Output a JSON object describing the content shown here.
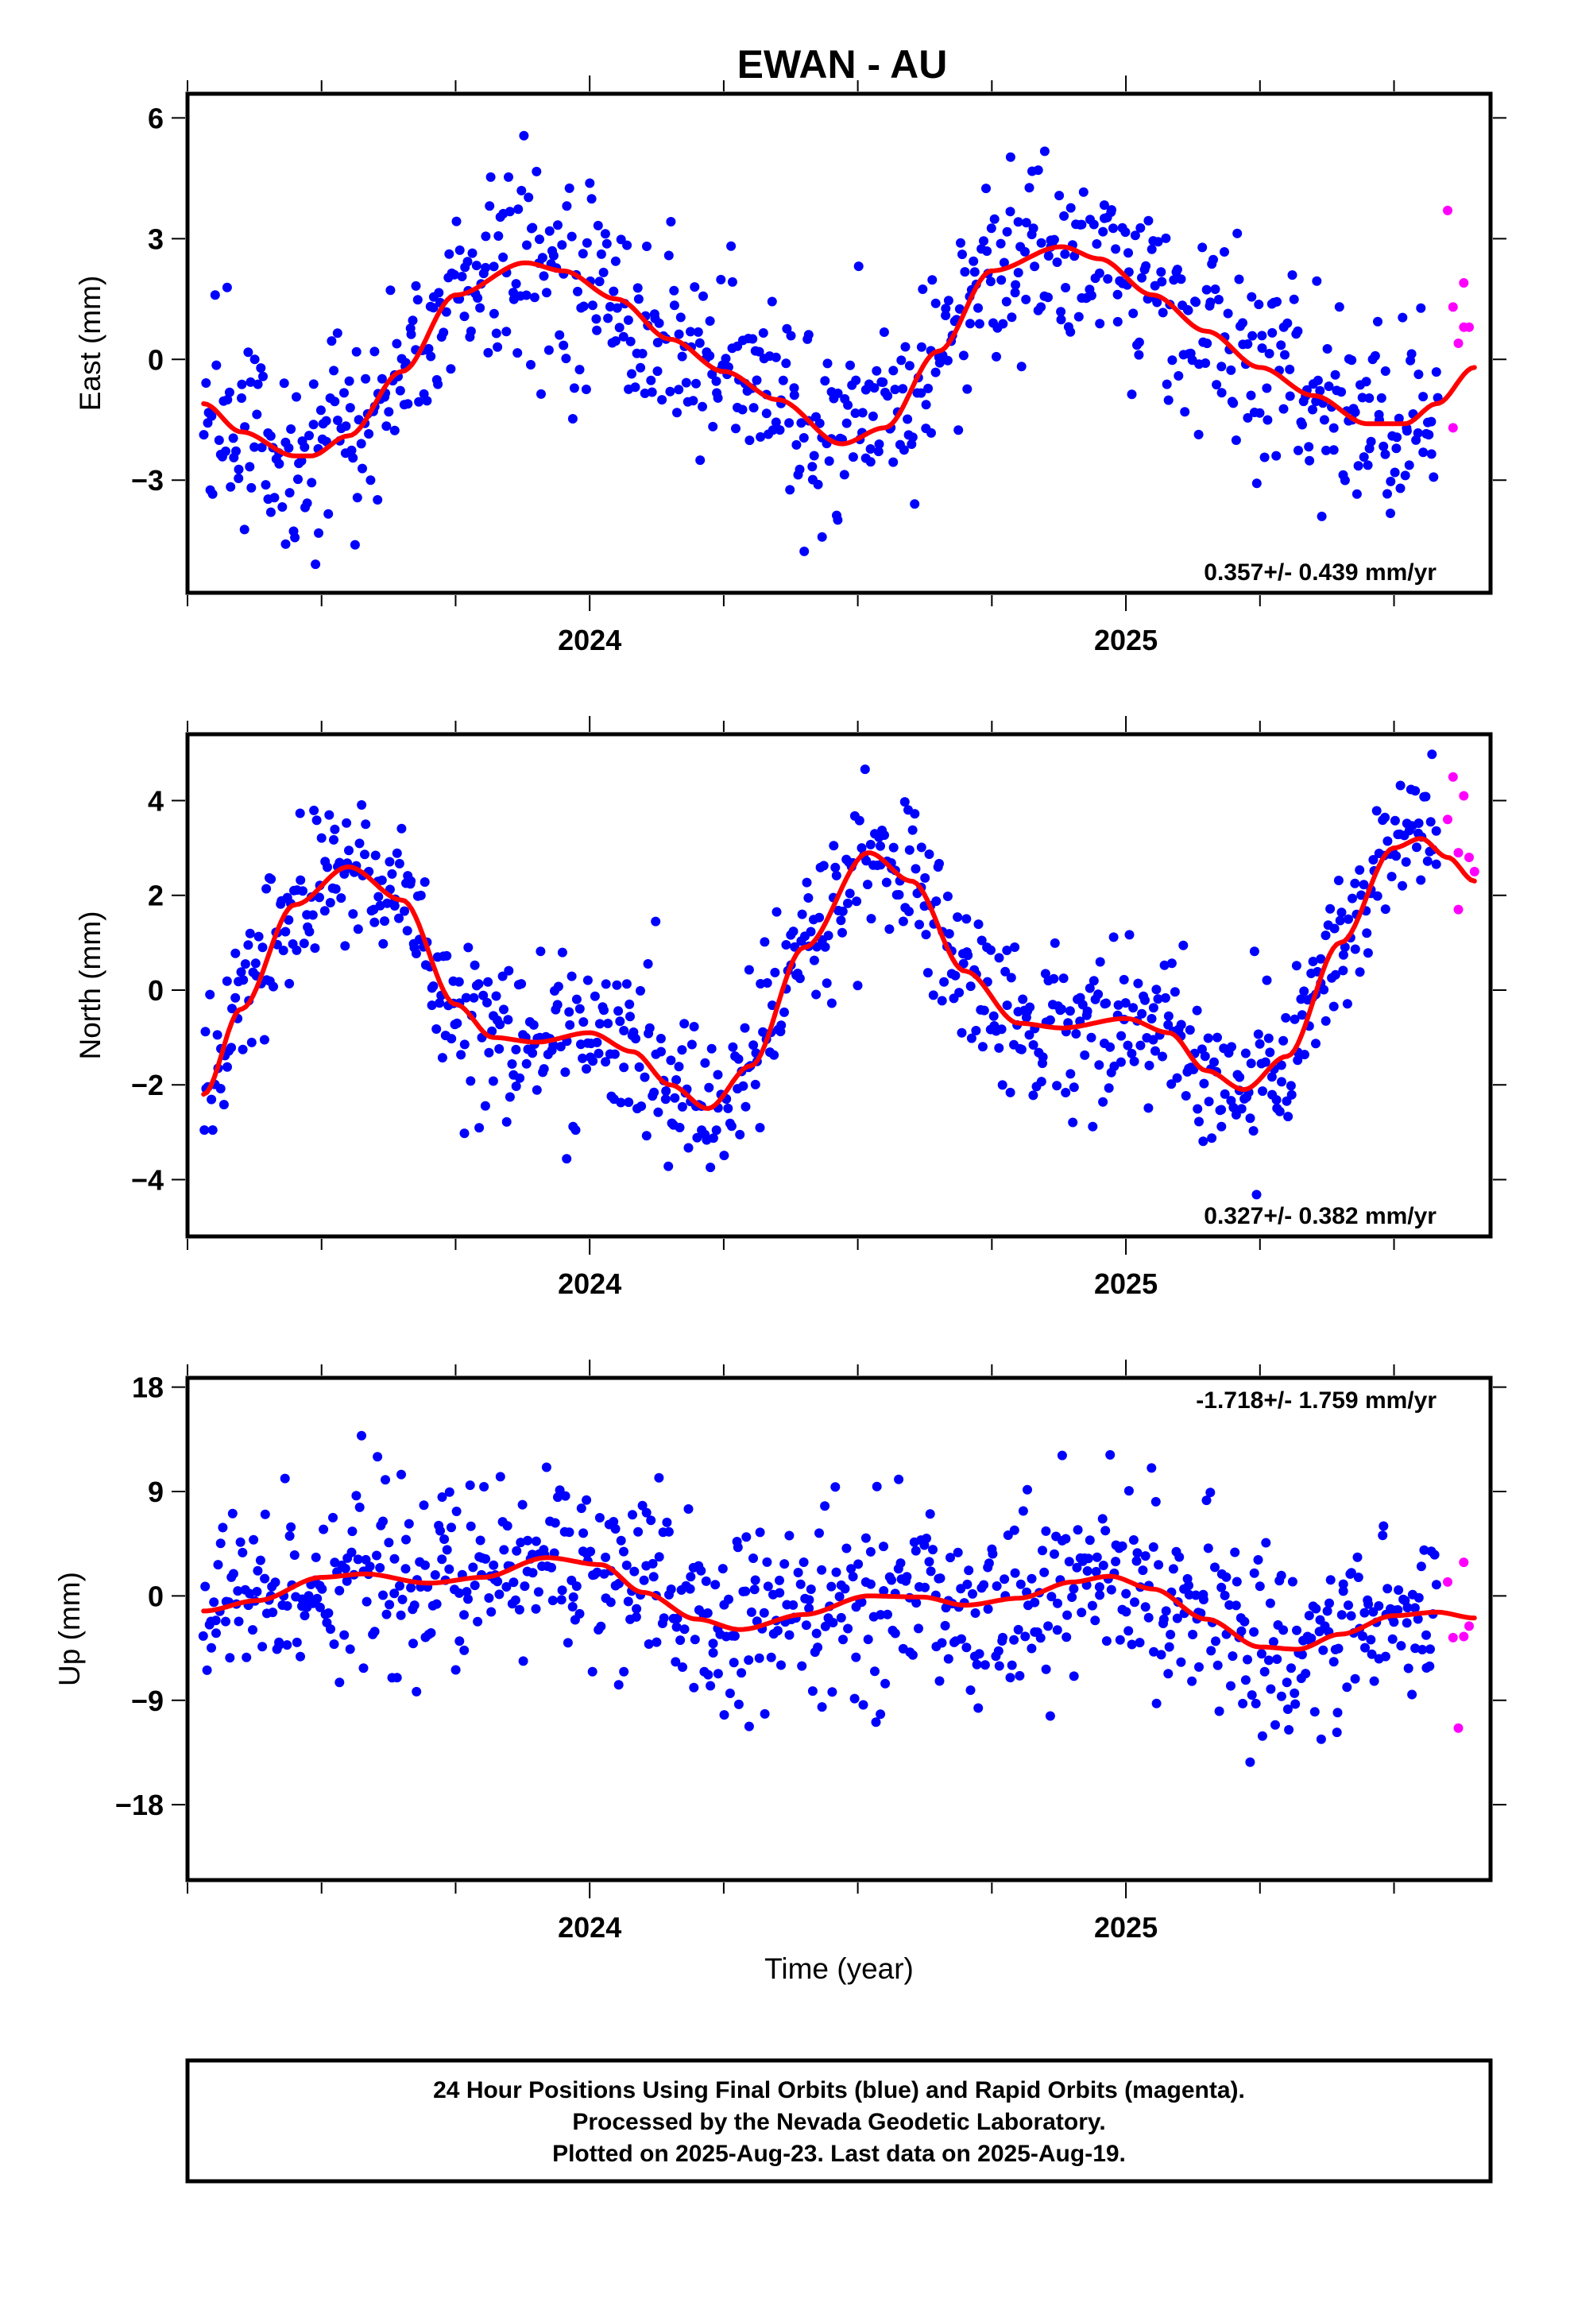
{
  "figure": {
    "title": "EWAN - AU",
    "xlabel": "Time (year)",
    "caption": [
      "24 Hour Positions Using Final Orbits (blue) and Rapid Orbits (magenta).",
      "Processed by the Nevada Geodetic Laboratory.",
      "Plotted on 2025-Aug-23. Last data on 2025-Aug-19."
    ],
    "colors": {
      "final": "#0000ff",
      "rapid": "#ff00ff",
      "fit": "#ff0000",
      "frame": "#000000"
    }
  },
  "chart_data": [
    {
      "type": "scatter",
      "ylabel": "East (mm)",
      "rate": "0.357+/- 0.439 mm/yr",
      "xlim": [
        2023.25,
        2025.68
      ],
      "ylim": [
        -5.8,
        6.6
      ],
      "yticks": [
        {
          "value": 6,
          "label": "6"
        },
        {
          "value": 3,
          "label": "3"
        },
        {
          "value": 0,
          "label": "0"
        },
        {
          "value": -3,
          "label": "−3"
        }
      ],
      "xticks": [
        {
          "value": 2024,
          "label": "2024"
        },
        {
          "value": 2025,
          "label": "2025"
        }
      ],
      "series": [
        {
          "name": "Final Orbits",
          "color": "#0000ff",
          "noise": 1.2
        },
        {
          "name": "Rapid Orbits",
          "color": "#ff00ff",
          "x": [
            2025.6,
            2025.61,
            2025.61,
            2025.62,
            2025.63,
            2025.63,
            2025.64
          ],
          "y": [
            3.7,
            -1.7,
            1.3,
            0.4,
            1.9,
            0.8,
            0.8
          ]
        }
      ],
      "fit": {
        "name": "fit",
        "color": "#ff0000",
        "x": [
          2023.28,
          2023.35,
          2023.45,
          2023.48,
          2023.55,
          2023.65,
          2023.75,
          2023.88,
          2023.95,
          2024.05,
          2024.15,
          2024.25,
          2024.35,
          2024.47,
          2024.55,
          2024.65,
          2024.75,
          2024.88,
          2024.95,
          2025.05,
          2025.15,
          2025.25,
          2025.35,
          2025.45,
          2025.52,
          2025.58,
          2025.65
        ],
        "y": [
          -1.1,
          -1.8,
          -2.4,
          -2.4,
          -1.9,
          -0.3,
          1.6,
          2.4,
          2.2,
          1.5,
          0.5,
          -0.3,
          -1.0,
          -2.1,
          -1.7,
          0.2,
          2.2,
          2.8,
          2.5,
          1.6,
          0.7,
          -0.2,
          -0.9,
          -1.6,
          -1.6,
          -1.1,
          -0.2
        ]
      }
    },
    {
      "type": "scatter",
      "ylabel": "North (mm)",
      "rate": "0.327+/- 0.382 mm/yr",
      "xlim": [
        2023.25,
        2025.68
      ],
      "ylim": [
        -5.2,
        5.4
      ],
      "yticks": [
        {
          "value": 4,
          "label": "4"
        },
        {
          "value": 2,
          "label": "2"
        },
        {
          "value": 0,
          "label": "0"
        },
        {
          "value": -2,
          "label": "−2"
        },
        {
          "value": -4,
          "label": "−4"
        }
      ],
      "xticks": [
        {
          "value": 2024,
          "label": "2024"
        },
        {
          "value": 2025,
          "label": "2025"
        }
      ],
      "series": [
        {
          "name": "Final Orbits",
          "color": "#0000ff",
          "noise": 0.85
        },
        {
          "name": "Rapid Orbits",
          "color": "#ff00ff",
          "x": [
            2025.6,
            2025.61,
            2025.62,
            2025.62,
            2025.63,
            2025.64,
            2025.65
          ],
          "y": [
            3.6,
            4.5,
            2.9,
            1.7,
            4.1,
            2.8,
            2.5
          ]
        }
      ],
      "fit": {
        "name": "fit",
        "color": "#ff0000",
        "x": [
          2023.28,
          2023.35,
          2023.45,
          2023.55,
          2023.65,
          2023.75,
          2023.82,
          2023.9,
          2024.0,
          2024.08,
          2024.15,
          2024.22,
          2024.3,
          2024.4,
          2024.52,
          2024.6,
          2024.7,
          2024.8,
          2024.88,
          2025.0,
          2025.08,
          2025.15,
          2025.22,
          2025.3,
          2025.4,
          2025.5,
          2025.55,
          2025.6,
          2025.65
        ],
        "y": [
          -2.2,
          -0.4,
          1.8,
          2.6,
          1.9,
          -0.3,
          -1.0,
          -1.1,
          -0.9,
          -1.3,
          -2.0,
          -2.5,
          -1.6,
          0.9,
          2.9,
          2.3,
          0.4,
          -0.7,
          -0.8,
          -0.6,
          -0.9,
          -1.7,
          -2.1,
          -1.4,
          1.0,
          3.0,
          3.2,
          2.8,
          2.3
        ]
      }
    },
    {
      "type": "scatter",
      "ylabel": "Up (mm)",
      "rate": "-1.718+/- 1.759 mm/yr",
      "xlim": [
        2023.25,
        2025.68
      ],
      "ylim": [
        -24.5,
        18.8
      ],
      "yticks": [
        {
          "value": 18,
          "label": "18"
        },
        {
          "value": 9,
          "label": "9"
        },
        {
          "value": 0,
          "label": "0"
        },
        {
          "value": -9,
          "label": "−9"
        },
        {
          "value": -18,
          "label": "−18"
        }
      ],
      "xticks": [
        {
          "value": 2024,
          "label": "2024"
        },
        {
          "value": 2025,
          "label": "2025"
        }
      ],
      "series": [
        {
          "name": "Final Orbits",
          "color": "#0000ff",
          "noise": 4.0
        },
        {
          "name": "Rapid Orbits",
          "color": "#ff00ff",
          "x": [
            2025.6,
            2025.61,
            2025.62,
            2025.63,
            2025.63,
            2025.64
          ],
          "y": [
            1.2,
            -3.6,
            -11.4,
            -3.5,
            2.9,
            -2.6
          ]
        }
      ],
      "fit": {
        "name": "fit",
        "color": "#ff0000",
        "x": [
          2023.28,
          2023.38,
          2023.5,
          2023.58,
          2023.7,
          2023.8,
          2023.92,
          2024.02,
          2024.1,
          2024.2,
          2024.28,
          2024.4,
          2024.52,
          2024.62,
          2024.7,
          2024.8,
          2024.9,
          2024.97,
          2025.05,
          2025.15,
          2025.25,
          2025.32,
          2025.4,
          2025.5,
          2025.58,
          2025.65
        ],
        "y": [
          -1.3,
          -0.4,
          1.6,
          1.9,
          1.1,
          1.6,
          3.3,
          2.7,
          0.3,
          -2.0,
          -2.9,
          -1.6,
          0.0,
          -0.1,
          -0.8,
          -0.2,
          1.2,
          1.7,
          0.6,
          -2.0,
          -4.4,
          -4.6,
          -3.3,
          -1.7,
          -1.4,
          -1.9
        ]
      }
    }
  ]
}
